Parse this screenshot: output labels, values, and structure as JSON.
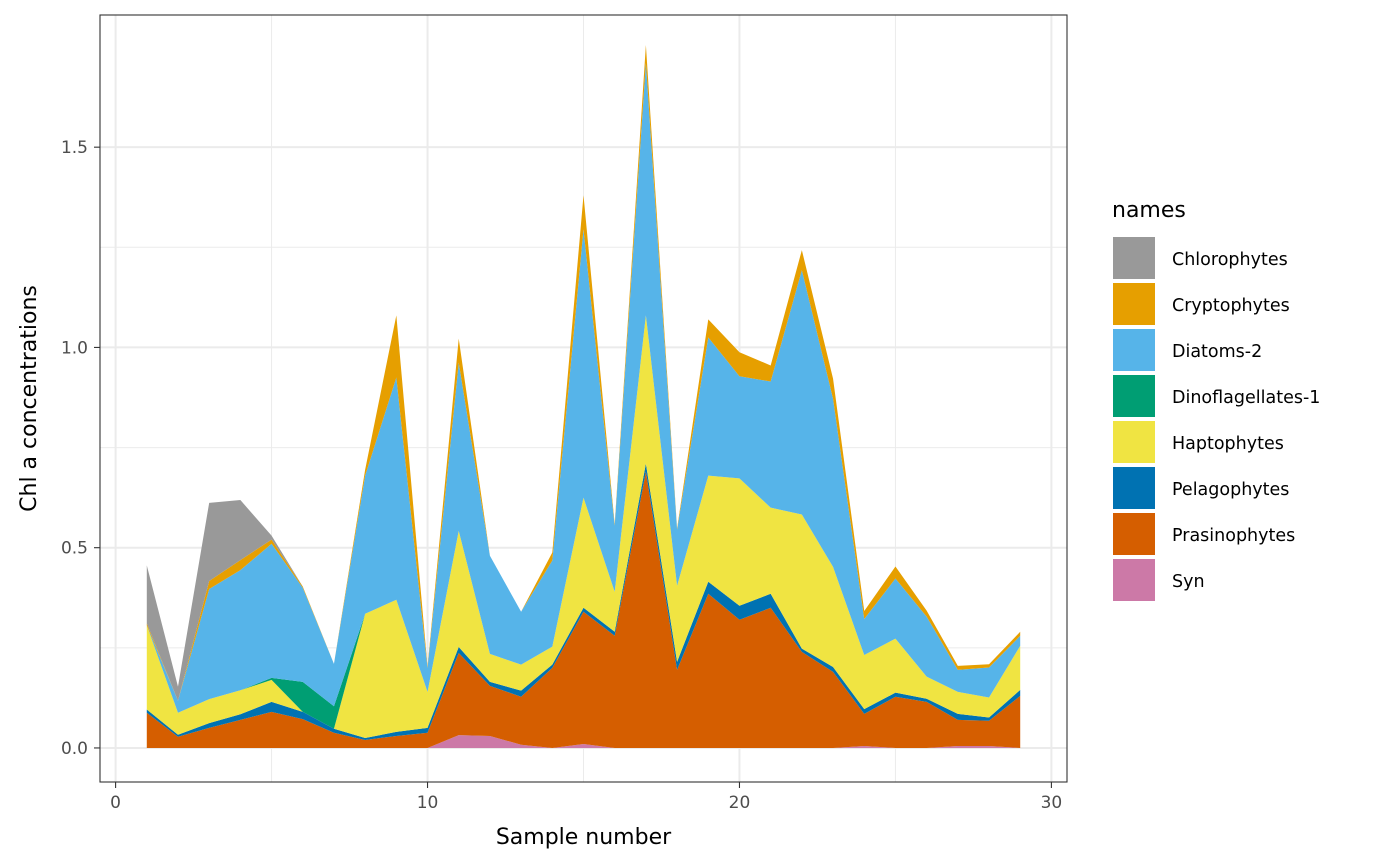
{
  "chart_data": {
    "type": "area",
    "stacked": true,
    "xlabel": "Sample number",
    "ylabel": "Chl a concentrations",
    "xlim": [
      -0.5,
      30.5
    ],
    "ylim": [
      -0.085,
      1.83
    ],
    "x_ticks": [
      0,
      10,
      20,
      30
    ],
    "x_tick_labels": [
      "0",
      "10",
      "20",
      "30"
    ],
    "y_ticks": [
      0.0,
      0.5,
      1.0,
      1.5
    ],
    "y_tick_labels": [
      "0.0",
      "0.5",
      "1.0",
      "1.5"
    ],
    "grid": true,
    "legend_title": "names",
    "legend_position": "right",
    "x": [
      1,
      2,
      3,
      4,
      5,
      6,
      7,
      8,
      9,
      10,
      11,
      12,
      13,
      14,
      15,
      16,
      17,
      18,
      19,
      20,
      21,
      22,
      23,
      24,
      25,
      26,
      27,
      28,
      29
    ],
    "series": [
      {
        "name": "Syn",
        "color": "#CC79A7",
        "values": [
          0,
          0,
          0,
          0,
          0,
          0,
          0,
          0,
          0,
          0,
          0.032,
          0.03,
          0.008,
          0,
          0.01,
          0,
          0,
          0,
          0,
          0,
          0,
          0,
          0,
          0.005,
          0,
          0,
          0.005,
          0.005,
          0
        ]
      },
      {
        "name": "Prasinophytes",
        "color": "#D55E00",
        "values": [
          0.088,
          0.028,
          0.05,
          0.07,
          0.09,
          0.072,
          0.038,
          0.02,
          0.03,
          0.038,
          0.205,
          0.125,
          0.12,
          0.2,
          0.33,
          0.28,
          0.69,
          0.195,
          0.385,
          0.32,
          0.35,
          0.24,
          0.19,
          0.08,
          0.128,
          0.115,
          0.065,
          0.063,
          0.13
        ]
      },
      {
        "name": "Pelagophytes",
        "color": "#0072B2",
        "values": [
          0.008,
          0.005,
          0.012,
          0.014,
          0.025,
          0.018,
          0.01,
          0.005,
          0.01,
          0.012,
          0.015,
          0.01,
          0.015,
          0.008,
          0.01,
          0.01,
          0.02,
          0.02,
          0.03,
          0.035,
          0.035,
          0.008,
          0.012,
          0.012,
          0.01,
          0.008,
          0.015,
          0.008,
          0.015
        ]
      },
      {
        "name": "Haptophytes",
        "color": "#F0E442",
        "values": [
          0.21,
          0.055,
          0.06,
          0.06,
          0.055,
          0,
          0,
          0.31,
          0.33,
          0.09,
          0.29,
          0.07,
          0.065,
          0.045,
          0.275,
          0.1,
          0.37,
          0.19,
          0.265,
          0.318,
          0.215,
          0.335,
          0.25,
          0.135,
          0.135,
          0.055,
          0.055,
          0.05,
          0.11
        ]
      },
      {
        "name": "Dinoflagellates-1",
        "color": "#009E73",
        "values": [
          0,
          0,
          0,
          0,
          0.005,
          0.075,
          0.056,
          0,
          0,
          0,
          0,
          0,
          0,
          0,
          0,
          0,
          0,
          0,
          0,
          0,
          0,
          0,
          0,
          0,
          0,
          0,
          0,
          0,
          0
        ]
      },
      {
        "name": "Diatoms-2",
        "color": "#56B4E9",
        "values": [
          0,
          0.03,
          0.275,
          0.3,
          0.335,
          0.235,
          0.106,
          0.345,
          0.555,
          0.06,
          0.42,
          0.245,
          0.132,
          0.215,
          0.67,
          0.165,
          0.63,
          0.14,
          0.345,
          0.255,
          0.315,
          0.61,
          0.42,
          0.09,
          0.15,
          0.15,
          0.055,
          0.075,
          0.025
        ]
      },
      {
        "name": "Cryptophytes",
        "color": "#E69F00",
        "values": [
          0.005,
          0,
          0.02,
          0.025,
          0.01,
          0.003,
          0,
          0.015,
          0.155,
          0.003,
          0.06,
          0,
          0,
          0.02,
          0.085,
          0.004,
          0.045,
          0.003,
          0.045,
          0.06,
          0.04,
          0.05,
          0.05,
          0.02,
          0.03,
          0.015,
          0.01,
          0.008,
          0.01
        ]
      },
      {
        "name": "Chlorophytes",
        "color": "#999999",
        "values": [
          0.145,
          0.035,
          0.195,
          0.15,
          0.01,
          0,
          0,
          0,
          0,
          0,
          0,
          0,
          0,
          0,
          0,
          0,
          0,
          0,
          0,
          0,
          0,
          0,
          0,
          0,
          0,
          0,
          0,
          0,
          0
        ]
      }
    ],
    "legend_order": [
      "Chlorophytes",
      "Cryptophytes",
      "Diatoms-2",
      "Dinoflagellates-1",
      "Haptophytes",
      "Pelagophytes",
      "Prasinophytes",
      "Syn"
    ]
  }
}
